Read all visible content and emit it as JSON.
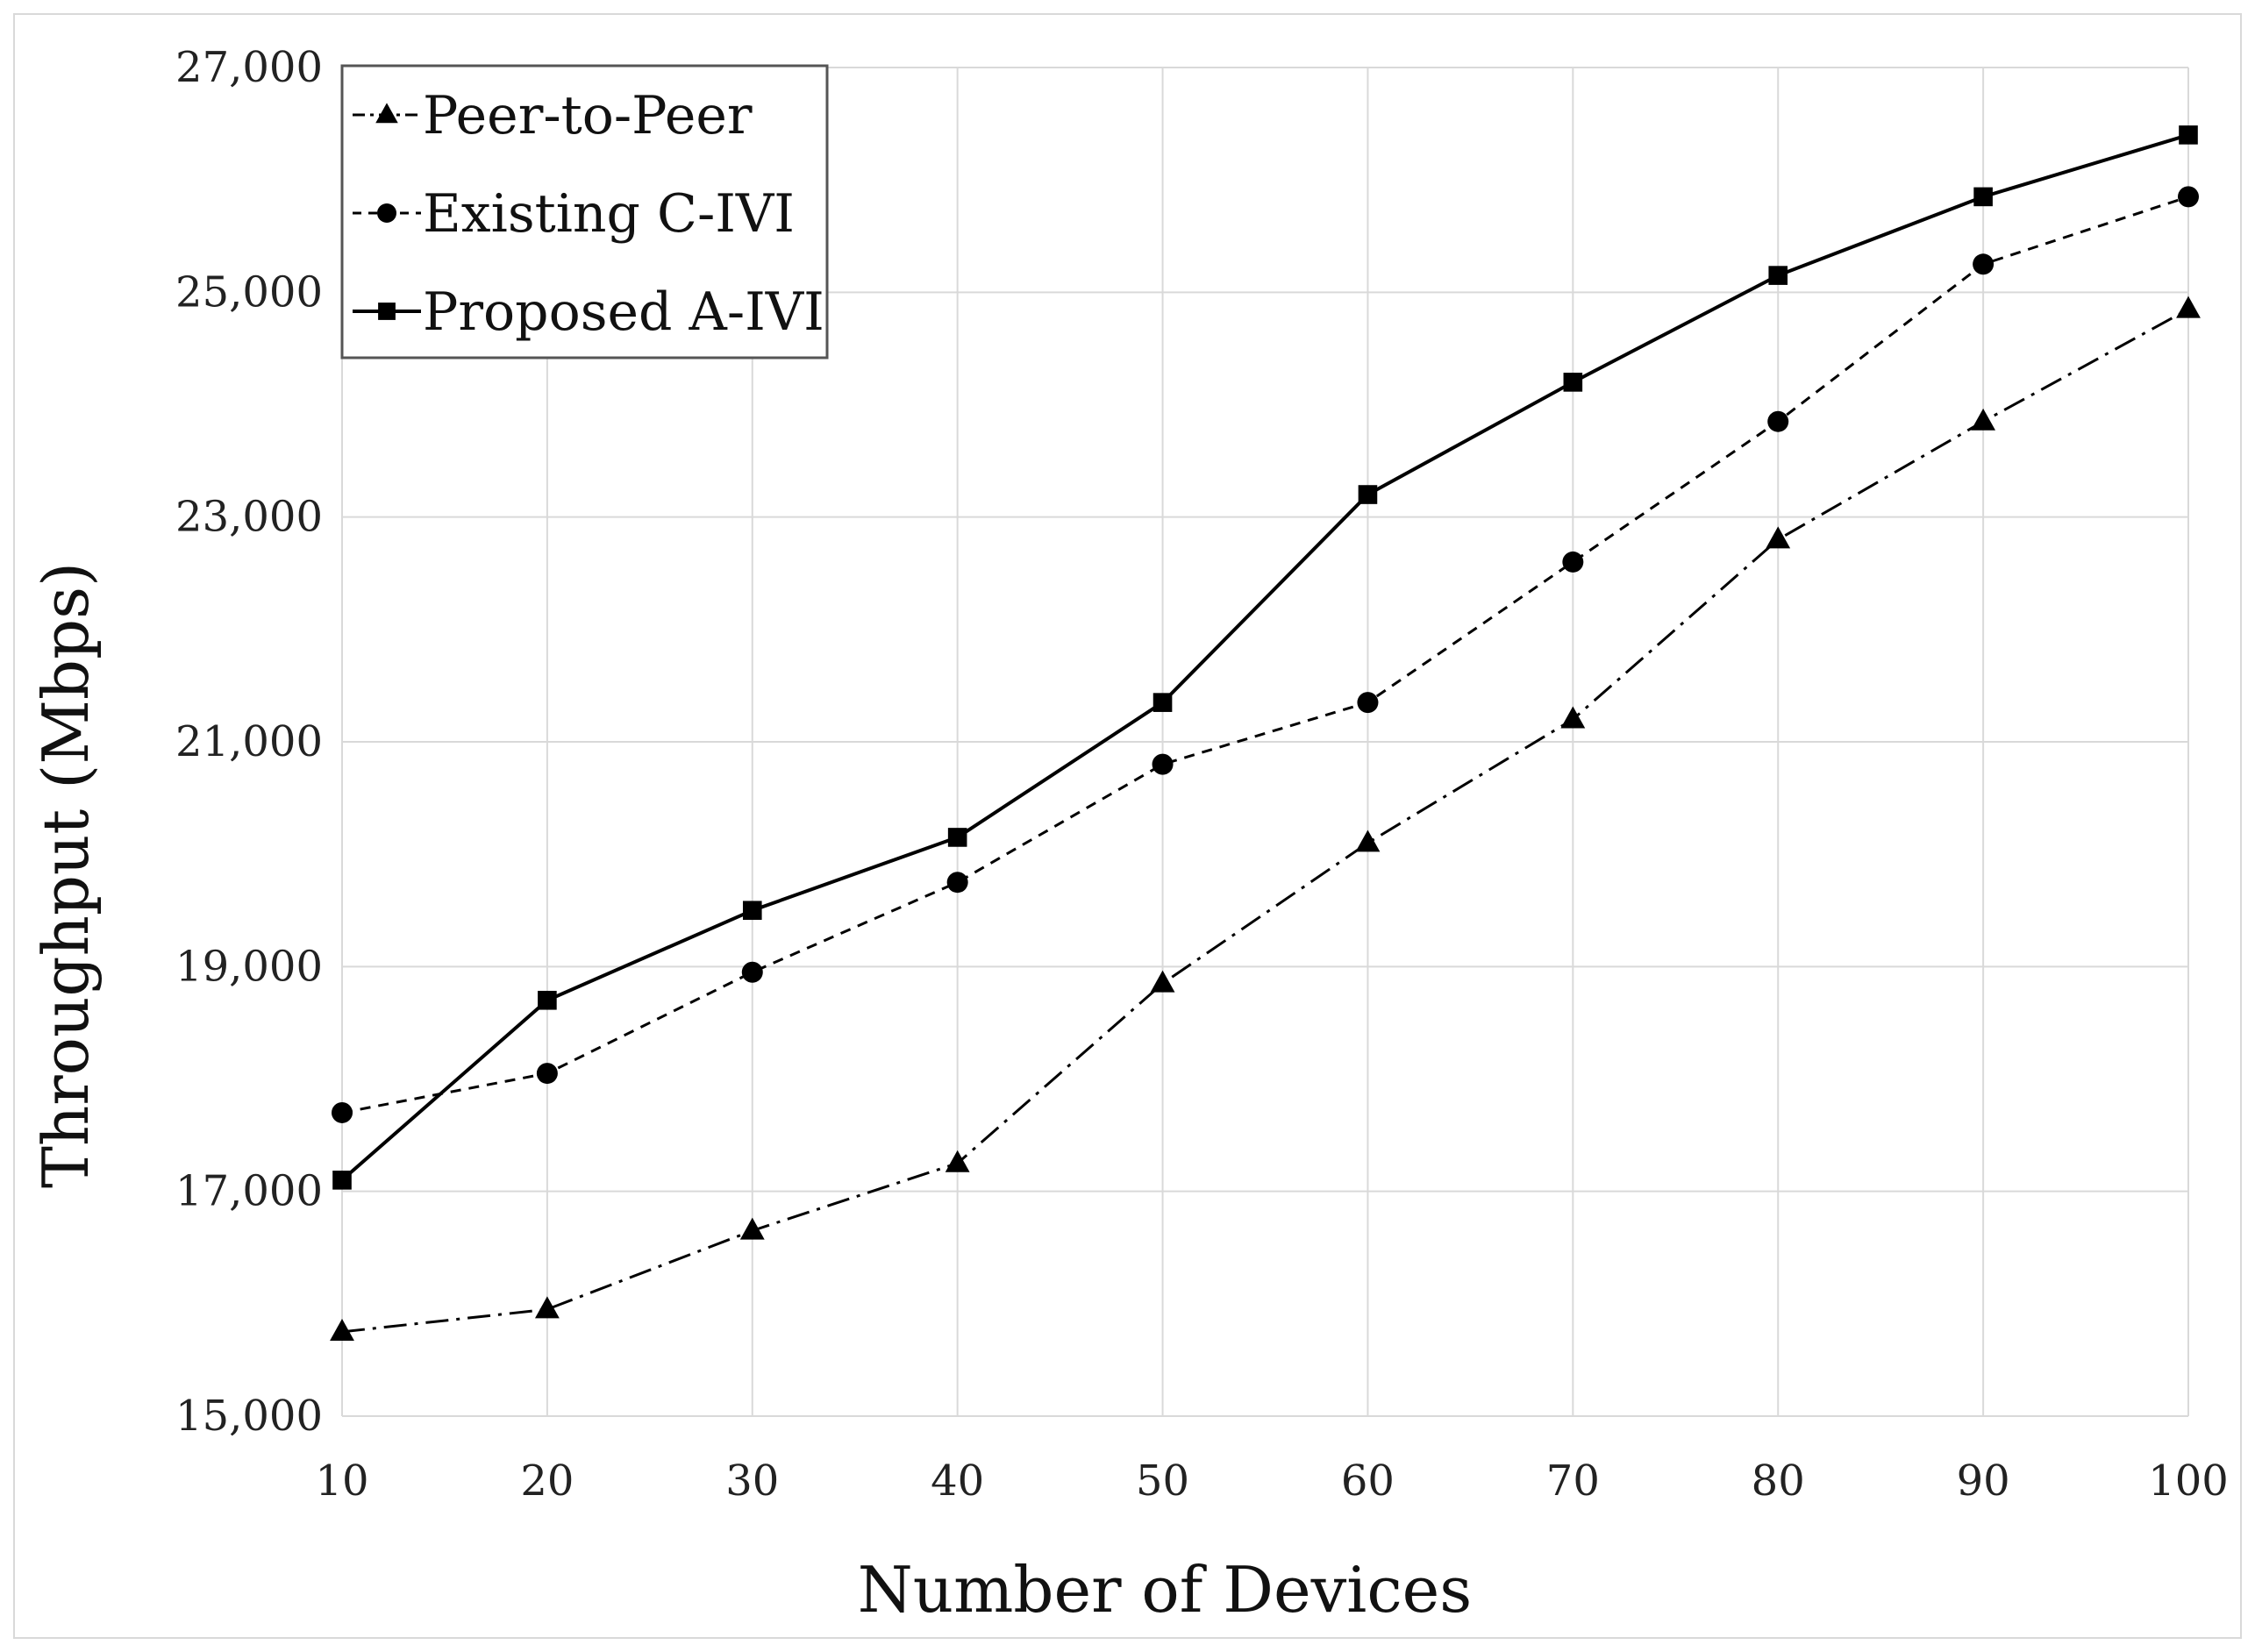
{
  "chart_data": {
    "type": "line",
    "title": "",
    "xlabel": "Number of Devices",
    "ylabel": "Throughput (Mbps)",
    "x": [
      10,
      20,
      30,
      40,
      50,
      60,
      70,
      80,
      90,
      100
    ],
    "x_tick_labels": [
      "10",
      "20",
      "30",
      "40",
      "50",
      "60",
      "70",
      "80",
      "90",
      "100"
    ],
    "xlim": [
      10,
      100
    ],
    "ylim": [
      15000,
      27000
    ],
    "y_ticks": [
      15000,
      17000,
      19000,
      21000,
      23000,
      25000,
      27000
    ],
    "y_tick_labels": [
      "15,000",
      "17,000",
      "19,000",
      "21,000",
      "23,000",
      "25,000",
      "27,000"
    ],
    "grid": true,
    "legend_position": "top-left",
    "series": [
      {
        "name": "Peer-to-Peer",
        "marker": "triangle",
        "line_style": "dash-dot",
        "color": "#000000",
        "values": [
          15750,
          15950,
          16650,
          17250,
          18850,
          20100,
          21200,
          22800,
          23850,
          24850
        ]
      },
      {
        "name": "Existing C-IVI",
        "marker": "circle",
        "line_style": "dashed",
        "color": "#000000",
        "values": [
          17700,
          18050,
          18950,
          19750,
          20800,
          21350,
          22600,
          23850,
          25250,
          25850
        ]
      },
      {
        "name": "Proposed A-IVI",
        "marker": "square",
        "line_style": "solid",
        "color": "#000000",
        "values": [
          17100,
          18700,
          19500,
          20150,
          21350,
          23200,
          24200,
          25150,
          25850,
          26400
        ]
      }
    ]
  },
  "colors": {
    "grid": "#d9d9d9",
    "line": "#000000",
    "background": "#ffffff"
  }
}
